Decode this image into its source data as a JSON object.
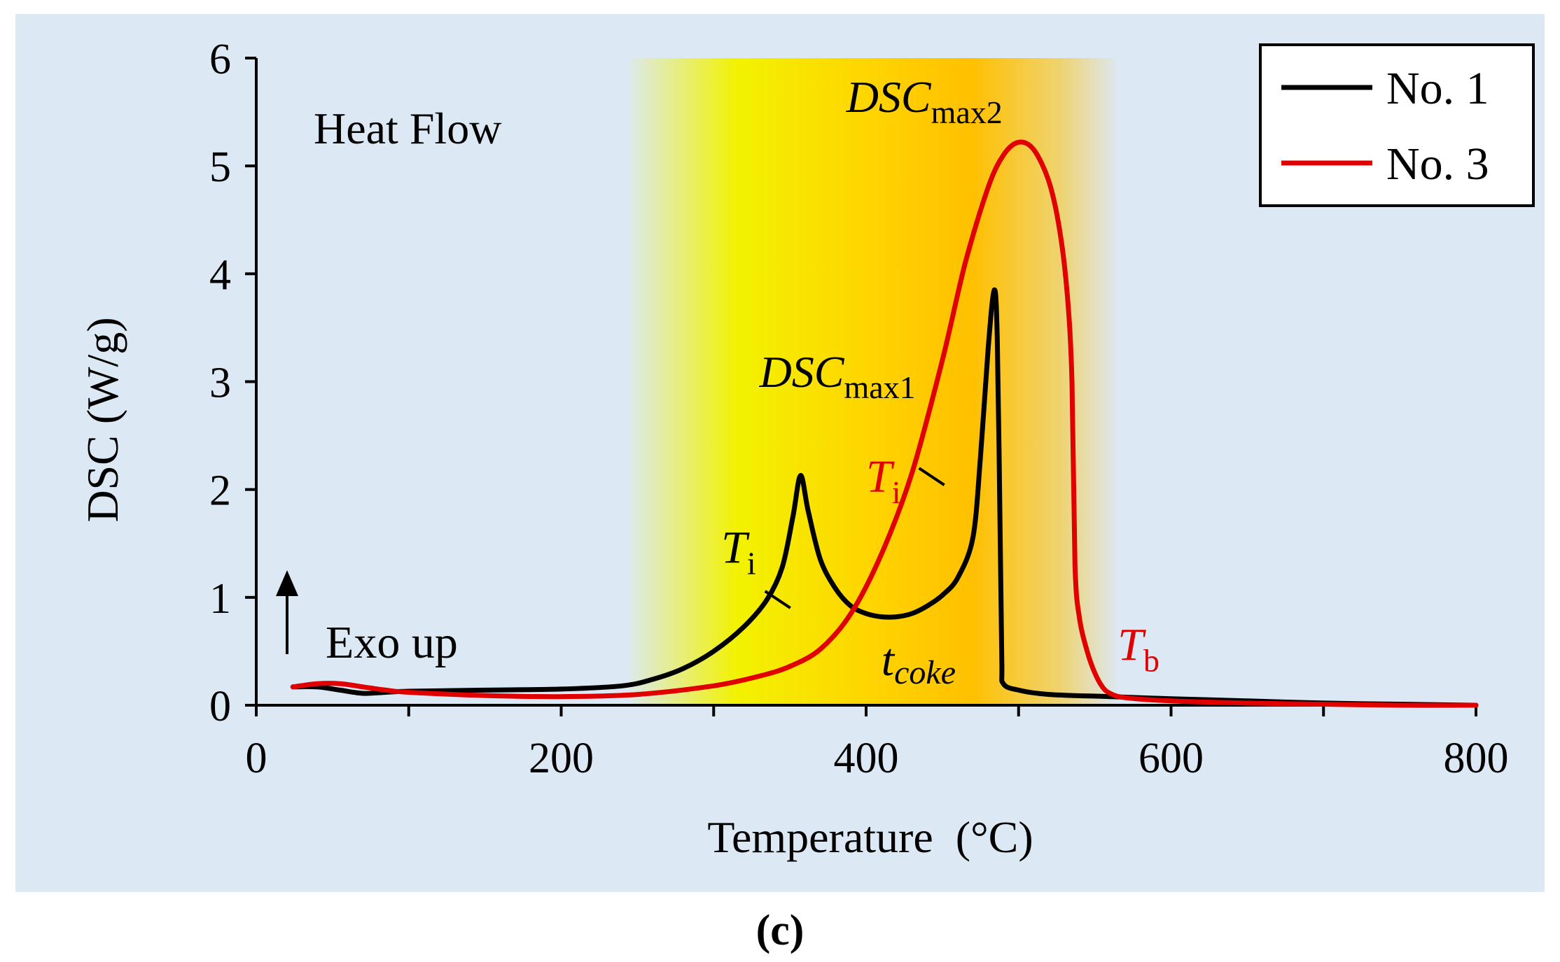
{
  "panel_label": "(c)",
  "colors": {
    "panel_bg": "#dce9f5",
    "no1": "#000000",
    "no3": "#e00000",
    "band_yellow": "#f2f200",
    "band_orange": "#ffc000"
  },
  "chart_data": {
    "type": "line",
    "title": "Heat Flow",
    "xlabel": "Temperature  (°C)",
    "ylabel": "DSC (W/g)",
    "xlim": [
      0,
      800
    ],
    "ylim": [
      0,
      6
    ],
    "xticks": [
      0,
      200,
      400,
      600,
      800
    ],
    "xticks_minor": [
      100,
      300,
      500,
      700
    ],
    "yticks": [
      0,
      1,
      2,
      3,
      4,
      5,
      6
    ],
    "highlight_band": [
      245,
      565
    ],
    "legend": {
      "position": "top-right",
      "entries": [
        "No. 1",
        "No. 3"
      ]
    },
    "series": [
      {
        "name": "No. 1",
        "color": "#000000",
        "x": [
          24,
          40,
          55,
          70,
          85,
          100,
          150,
          200,
          240,
          260,
          280,
          300,
          320,
          335,
          345,
          352,
          357,
          362,
          370,
          380,
          390,
          400,
          410,
          420,
          430,
          440,
          450,
          460,
          470,
          475,
          480,
          484,
          486,
          488,
          489,
          490,
          500,
          520,
          560,
          600,
          650,
          700,
          750,
          800
        ],
        "y": [
          0.17,
          0.17,
          0.14,
          0.11,
          0.12,
          0.13,
          0.14,
          0.15,
          0.18,
          0.24,
          0.34,
          0.5,
          0.73,
          0.98,
          1.28,
          1.75,
          2.13,
          1.8,
          1.35,
          1.08,
          0.92,
          0.85,
          0.82,
          0.82,
          0.85,
          0.92,
          1.02,
          1.18,
          1.55,
          2.3,
          3.3,
          3.85,
          3.4,
          1.5,
          0.4,
          0.2,
          0.14,
          0.1,
          0.08,
          0.06,
          0.04,
          0.02,
          0.01,
          0.0
        ]
      },
      {
        "name": "No. 3",
        "color": "#e00000",
        "x": [
          24,
          40,
          55,
          70,
          85,
          100,
          150,
          200,
          250,
          300,
          330,
          350,
          370,
          390,
          410,
          430,
          450,
          465,
          480,
          490,
          500,
          510,
          520,
          527,
          532,
          535,
          537,
          540,
          545,
          550,
          555,
          560,
          570,
          600,
          650,
          700,
          750,
          800
        ],
        "y": [
          0.17,
          0.2,
          0.2,
          0.17,
          0.14,
          0.12,
          0.09,
          0.08,
          0.1,
          0.18,
          0.27,
          0.36,
          0.52,
          0.85,
          1.4,
          2.15,
          3.2,
          4.1,
          4.8,
          5.1,
          5.22,
          5.15,
          4.85,
          4.4,
          3.8,
          3.0,
          1.3,
          0.8,
          0.5,
          0.3,
          0.17,
          0.11,
          0.07,
          0.04,
          0.02,
          0.01,
          0.0,
          0.0
        ]
      }
    ],
    "annotations": [
      {
        "id": "dsc_max1",
        "base": "DSC",
        "sub": "max1",
        "x": 330,
        "y": 2.95,
        "color": "#000000"
      },
      {
        "id": "dsc_max2",
        "base": "DSC",
        "sub": "max2",
        "x": 387,
        "y": 5.5,
        "color": "#000000"
      },
      {
        "id": "ti_black",
        "base": "T",
        "sub": "i",
        "x": 305,
        "y": 1.32,
        "color": "#000000"
      },
      {
        "id": "ti_red",
        "base": "T",
        "sub": "i",
        "x": 400,
        "y": 1.98,
        "color": "#e00000"
      },
      {
        "id": "tb_red",
        "base": "T",
        "sub": "b",
        "x": 565,
        "y": 0.42,
        "color": "#e00000"
      },
      {
        "id": "tcoke",
        "base": "t",
        "sub": "coke",
        "x": 410,
        "y": 0.28,
        "color": "#000000"
      }
    ],
    "marker_ticks": [
      {
        "x": 342,
        "y": 0.98,
        "color": "#000000"
      },
      {
        "x": 443,
        "y": 2.12,
        "color": "#000000"
      }
    ],
    "exo_label": "Exo up"
  }
}
